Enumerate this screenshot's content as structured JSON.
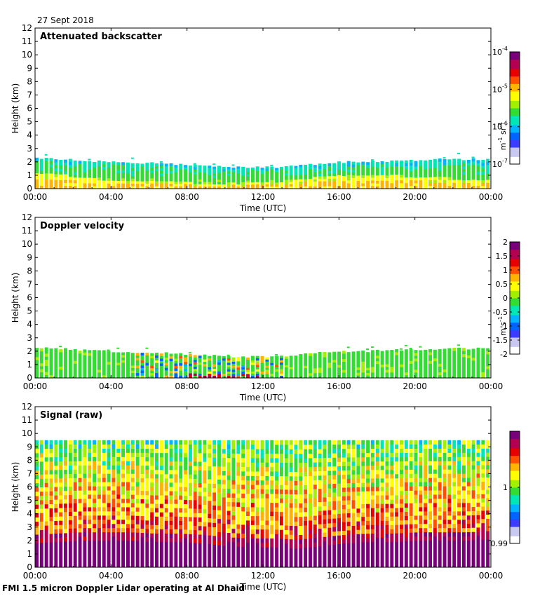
{
  "date_label": "27 Sept 2018",
  "footer": "FMI 1.5 micron Doppler Lidar operating at Al Dhaid",
  "colors": {
    "colormap": [
      "#ffffff",
      "#c8c8f0",
      "#3c3cff",
      "#0064ff",
      "#00b4ff",
      "#00e6b4",
      "#32dc32",
      "#a0f000",
      "#ffff00",
      "#ffb400",
      "#ff5000",
      "#e60000",
      "#b40050",
      "#780078"
    ],
    "bar_gap": "#ffffff"
  },
  "chart_data": [
    {
      "type": "heatmap",
      "title": "Attenuated backscatter",
      "xlabel": "Time (UTC)",
      "ylabel": "Height (km)",
      "x_ticks": [
        "00:00",
        "04:00",
        "08:00",
        "12:00",
        "16:00",
        "20:00",
        "00:00"
      ],
      "x_range_hours": [
        0,
        24
      ],
      "y_ticks": [
        "0",
        "1",
        "2",
        "3",
        "4",
        "5",
        "6",
        "7",
        "8",
        "9",
        "10",
        "11",
        "12"
      ],
      "ylim": [
        0,
        12
      ],
      "colorbar": {
        "label_main": "m",
        "label_sup1": "-1",
        "label_mid": " sr",
        "label_sup2": "-1",
        "ticks": [
          {
            "base": "10",
            "exp": "-4",
            "frac": 1.0
          },
          {
            "base": "10",
            "exp": "-5",
            "frac": 0.6667
          },
          {
            "base": "10",
            "exp": "-6",
            "frac": 0.3333
          },
          {
            "base": "10",
            "exp": "-7",
            "frac": 0.0
          }
        ]
      },
      "layer_top_km": [
        2.3,
        2.2,
        2.1,
        2.0,
        1.9,
        1.9,
        1.8,
        1.7,
        1.6,
        1.6,
        1.6,
        1.7,
        1.9,
        2.0,
        2.0,
        2.1,
        2.1,
        2.2,
        2.2,
        2.2
      ],
      "aerosol_top_km": [
        1.2,
        1.1,
        0.8,
        0.6,
        0.6,
        0.5,
        0.5,
        0.4,
        0.4,
        0.4,
        0.5,
        0.7,
        0.9,
        1.0,
        1.0,
        1.0,
        0.9,
        0.8,
        0.7,
        0.6
      ],
      "mode": "backscatter"
    },
    {
      "type": "heatmap",
      "title": "Doppler velocity",
      "xlabel": "Time (UTC)",
      "ylabel": "Height (km)",
      "x_ticks": [
        "00:00",
        "04:00",
        "08:00",
        "12:00",
        "16:00",
        "20:00",
        "00:00"
      ],
      "x_range_hours": [
        0,
        24
      ],
      "y_ticks": [
        "0",
        "1",
        "2",
        "3",
        "4",
        "5",
        "6",
        "7",
        "8",
        "9",
        "10",
        "11",
        "12"
      ],
      "ylim": [
        0,
        12
      ],
      "colorbar": {
        "label_main": "m",
        "label_sup1": "",
        "label_mid": " s",
        "label_sup2": "-1",
        "ticks": [
          {
            "base": "2",
            "exp": "",
            "frac": 1.0
          },
          {
            "base": "1.5",
            "exp": "",
            "frac": 0.875
          },
          {
            "base": "1",
            "exp": "",
            "frac": 0.75
          },
          {
            "base": "0.5",
            "exp": "",
            "frac": 0.625
          },
          {
            "base": "0",
            "exp": "",
            "frac": 0.5
          },
          {
            "base": "-0.5",
            "exp": "",
            "frac": 0.375
          },
          {
            "base": "-1",
            "exp": "",
            "frac": 0.25
          },
          {
            "base": "-1.5",
            "exp": "",
            "frac": 0.125
          },
          {
            "base": "-2",
            "exp": "",
            "frac": 0.0
          }
        ]
      },
      "vrange": [
        -2,
        2
      ],
      "layer_top_km": [
        2.3,
        2.2,
        2.1,
        2.0,
        1.9,
        1.9,
        1.8,
        1.7,
        1.6,
        1.6,
        1.6,
        1.7,
        1.9,
        2.0,
        2.0,
        2.1,
        2.1,
        2.2,
        2.2,
        2.2
      ],
      "mode": "velocity"
    },
    {
      "type": "heatmap",
      "title": "Signal (raw)",
      "xlabel": "Time (UTC)",
      "ylabel": "Height (km)",
      "x_ticks": [
        "00:00",
        "04:00",
        "08:00",
        "12:00",
        "16:00",
        "20:00",
        "00:00"
      ],
      "x_range_hours": [
        0,
        24
      ],
      "y_ticks": [
        "0",
        "1",
        "2",
        "3",
        "4",
        "5",
        "6",
        "7",
        "8",
        "9",
        "10",
        "11",
        "12"
      ],
      "ylim": [
        0,
        12
      ],
      "colorbar": {
        "label_main": "",
        "label_sup1": "",
        "label_mid": "",
        "label_sup2": "",
        "ticks": [
          {
            "base": "1",
            "exp": "",
            "frac": 0.5
          },
          {
            "base": "0.99",
            "exp": "",
            "frac": 0.0
          }
        ]
      },
      "data_top_km": 9.5,
      "saturated_top_km": [
        1.8,
        1.9,
        2.0,
        2.0,
        2.0,
        1.9,
        1.9,
        1.8,
        1.6,
        1.5,
        1.5,
        1.4,
        1.6,
        1.8,
        1.9,
        1.9,
        2.0,
        2.0,
        2.0,
        2.1
      ],
      "mode": "signal"
    }
  ]
}
